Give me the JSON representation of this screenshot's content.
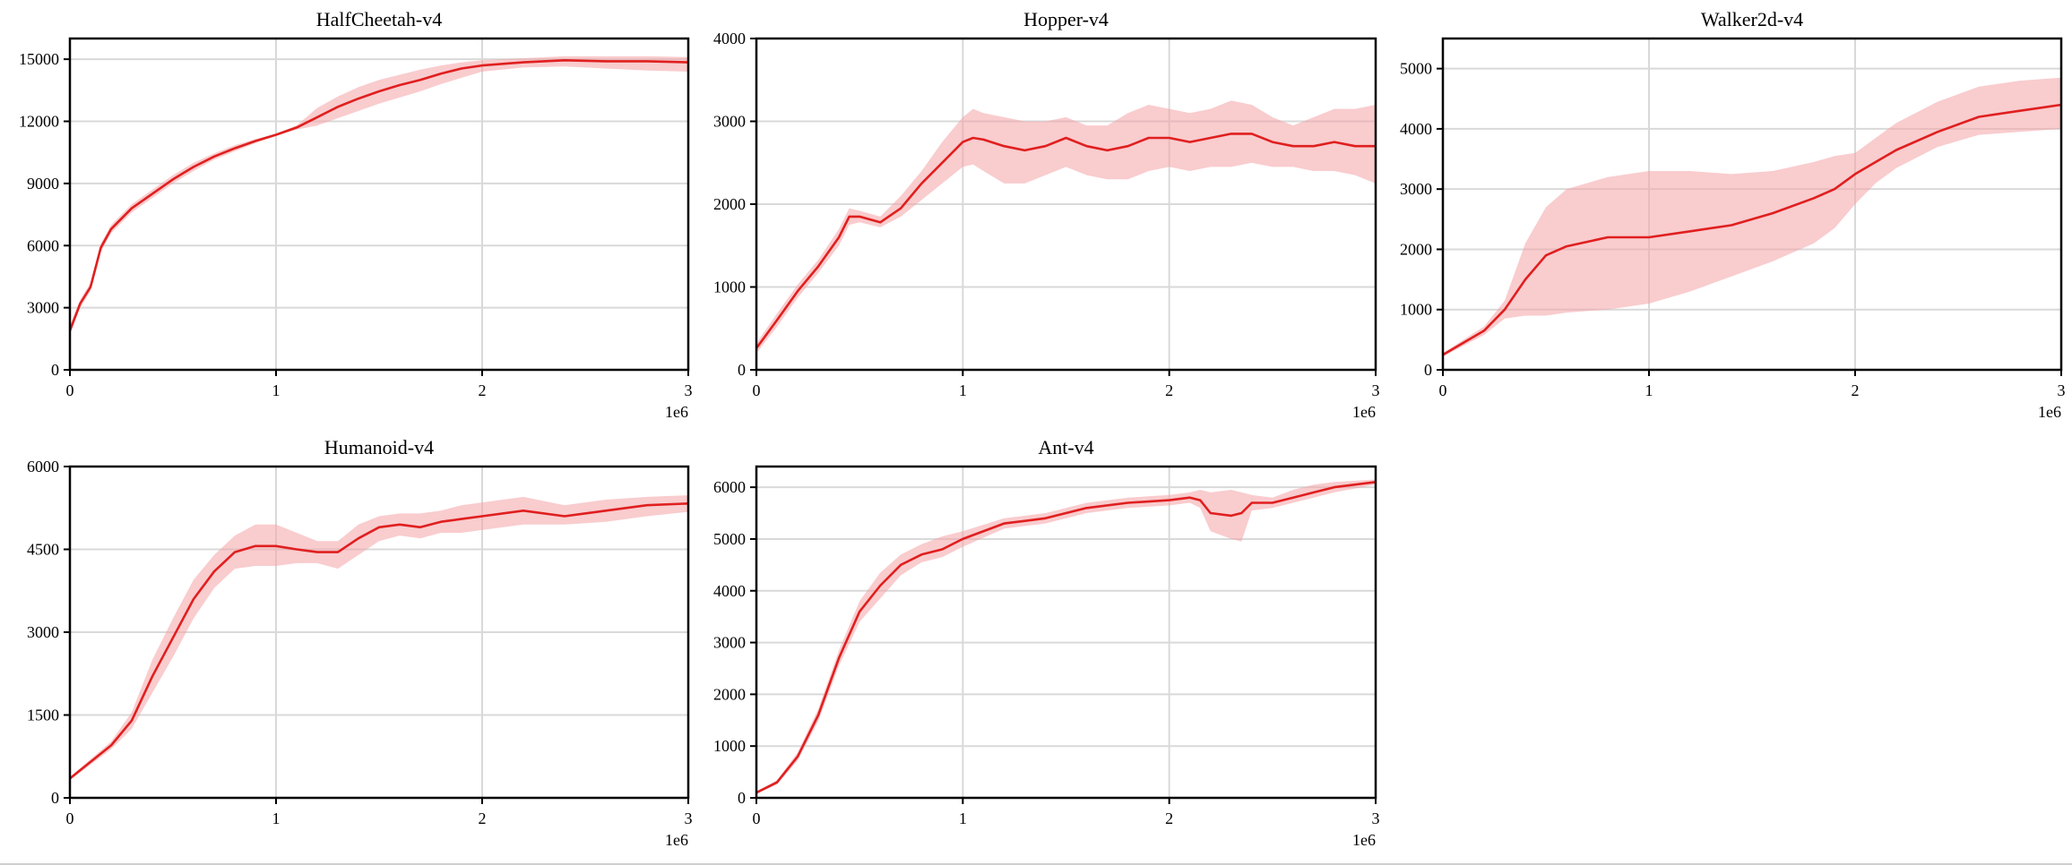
{
  "colors": {
    "line": "#e01f1f",
    "band": "#f4a3a6",
    "grid": "#d9d9d9",
    "axis": "#000000"
  },
  "chart_data": [
    {
      "type": "line",
      "title": "HalfCheetah-v4",
      "x_multiplier_label": "1e6",
      "xlim": [
        0,
        3
      ],
      "ylim": [
        0,
        16000
      ],
      "xticks": [
        0,
        1,
        2,
        3
      ],
      "yticks": [
        0,
        3000,
        6000,
        9000,
        12000,
        15000
      ],
      "grid": true,
      "series": [
        {
          "x": [
            0,
            0.05,
            0.1,
            0.15,
            0.2,
            0.3,
            0.4,
            0.5,
            0.6,
            0.7,
            0.8,
            0.9,
            1.0,
            1.1,
            1.2,
            1.3,
            1.4,
            1.5,
            1.6,
            1.7,
            1.8,
            1.9,
            2.0,
            2.2,
            2.4,
            2.6,
            2.8,
            3.0
          ],
          "y": [
            1900,
            3200,
            4000,
            5900,
            6800,
            7800,
            8500,
            9200,
            9800,
            10300,
            10700,
            11050,
            11350,
            11700,
            12200,
            12700,
            13100,
            13450,
            13750,
            14000,
            14300,
            14550,
            14700,
            14850,
            14950,
            14900,
            14900,
            14850
          ],
          "lower": [
            1700,
            3000,
            3800,
            5700,
            6600,
            7600,
            8300,
            9000,
            9600,
            10150,
            10550,
            10950,
            11300,
            11600,
            11800,
            12150,
            12500,
            12850,
            13150,
            13450,
            13800,
            14100,
            14400,
            14600,
            14650,
            14550,
            14450,
            14400
          ],
          "upper": [
            2100,
            3400,
            4200,
            6100,
            7000,
            8000,
            8700,
            9400,
            10000,
            10450,
            10850,
            11150,
            11400,
            11800,
            12650,
            13200,
            13650,
            14000,
            14250,
            14500,
            14700,
            14850,
            14950,
            15050,
            15150,
            15150,
            15150,
            15100
          ]
        }
      ]
    },
    {
      "type": "line",
      "title": "Hopper-v4",
      "x_multiplier_label": "1e6",
      "xlim": [
        0,
        3
      ],
      "ylim": [
        0,
        4000
      ],
      "xticks": [
        0,
        1,
        2,
        3
      ],
      "yticks": [
        0,
        1000,
        2000,
        3000,
        4000
      ],
      "grid": true,
      "series": [
        {
          "x": [
            0,
            0.1,
            0.2,
            0.3,
            0.4,
            0.45,
            0.5,
            0.6,
            0.7,
            0.8,
            0.9,
            1.0,
            1.05,
            1.1,
            1.2,
            1.3,
            1.4,
            1.5,
            1.6,
            1.7,
            1.8,
            1.9,
            2.0,
            2.1,
            2.2,
            2.3,
            2.4,
            2.5,
            2.6,
            2.7,
            2.8,
            2.9,
            3.0
          ],
          "y": [
            260,
            600,
            950,
            1250,
            1600,
            1850,
            1850,
            1780,
            1950,
            2250,
            2500,
            2750,
            2800,
            2780,
            2700,
            2650,
            2700,
            2800,
            2700,
            2650,
            2700,
            2800,
            2800,
            2750,
            2800,
            2850,
            2850,
            2750,
            2700,
            2700,
            2750,
            2700,
            2700
          ],
          "lower": [
            200,
            520,
            870,
            1170,
            1500,
            1750,
            1780,
            1720,
            1850,
            2050,
            2250,
            2450,
            2480,
            2400,
            2250,
            2250,
            2350,
            2450,
            2350,
            2300,
            2300,
            2400,
            2450,
            2400,
            2450,
            2450,
            2500,
            2450,
            2450,
            2400,
            2400,
            2350,
            2250
          ],
          "upper": [
            320,
            680,
            1030,
            1330,
            1700,
            1950,
            1920,
            1850,
            2100,
            2400,
            2750,
            3050,
            3150,
            3100,
            3050,
            3000,
            3000,
            3050,
            2950,
            2950,
            3100,
            3200,
            3150,
            3100,
            3150,
            3250,
            3200,
            3050,
            2950,
            3050,
            3150,
            3150,
            3200
          ]
        }
      ]
    },
    {
      "type": "line",
      "title": "Walker2d-v4",
      "x_multiplier_label": "1e6",
      "xlim": [
        0,
        3
      ],
      "ylim": [
        0,
        5500
      ],
      "xticks": [
        0,
        1,
        2,
        3
      ],
      "yticks": [
        0,
        1000,
        2000,
        3000,
        4000,
        5000
      ],
      "grid": true,
      "series": [
        {
          "x": [
            0,
            0.1,
            0.2,
            0.3,
            0.4,
            0.5,
            0.6,
            0.8,
            1.0,
            1.2,
            1.4,
            1.6,
            1.8,
            1.9,
            2.0,
            2.1,
            2.2,
            2.4,
            2.6,
            2.8,
            3.0
          ],
          "y": [
            250,
            450,
            650,
            1000,
            1500,
            1900,
            2050,
            2200,
            2200,
            2300,
            2400,
            2600,
            2850,
            3000,
            3250,
            3450,
            3650,
            3950,
            4200,
            4300,
            4400
          ],
          "lower": [
            220,
            400,
            580,
            850,
            900,
            900,
            950,
            1000,
            1100,
            1300,
            1550,
            1800,
            2100,
            2350,
            2750,
            3100,
            3350,
            3700,
            3900,
            3950,
            4000
          ],
          "upper": [
            280,
            500,
            720,
            1150,
            2100,
            2700,
            3000,
            3200,
            3300,
            3300,
            3250,
            3300,
            3450,
            3550,
            3600,
            3850,
            4100,
            4450,
            4700,
            4800,
            4850
          ]
        }
      ]
    },
    {
      "type": "line",
      "title": "Humanoid-v4",
      "x_multiplier_label": "1e6",
      "xlim": [
        0,
        3
      ],
      "ylim": [
        0,
        6000
      ],
      "xticks": [
        0,
        1,
        2,
        3
      ],
      "yticks": [
        0,
        1500,
        3000,
        4500,
        6000
      ],
      "grid": true,
      "series": [
        {
          "x": [
            0,
            0.1,
            0.2,
            0.3,
            0.4,
            0.5,
            0.6,
            0.7,
            0.8,
            0.9,
            1.0,
            1.1,
            1.2,
            1.3,
            1.4,
            1.5,
            1.6,
            1.7,
            1.8,
            1.9,
            2.0,
            2.2,
            2.4,
            2.6,
            2.8,
            3.0
          ],
          "y": [
            350,
            650,
            950,
            1400,
            2200,
            2900,
            3600,
            4100,
            4450,
            4560,
            4560,
            4500,
            4450,
            4450,
            4700,
            4900,
            4950,
            4900,
            5000,
            5050,
            5100,
            5200,
            5100,
            5200,
            5300,
            5330
          ],
          "lower": [
            320,
            600,
            880,
            1250,
            1900,
            2550,
            3250,
            3800,
            4150,
            4200,
            4200,
            4250,
            4250,
            4150,
            4400,
            4650,
            4750,
            4700,
            4800,
            4800,
            4850,
            4950,
            4950,
            5000,
            5100,
            5180
          ],
          "upper": [
            380,
            700,
            1020,
            1550,
            2500,
            3250,
            3950,
            4400,
            4750,
            4950,
            4950,
            4800,
            4650,
            4650,
            4950,
            5100,
            5150,
            5150,
            5200,
            5300,
            5350,
            5450,
            5300,
            5400,
            5450,
            5480
          ]
        }
      ]
    },
    {
      "type": "line",
      "title": "Ant-v4",
      "x_multiplier_label": "1e6",
      "xlim": [
        0,
        3
      ],
      "ylim": [
        0,
        6400
      ],
      "xticks": [
        0,
        1,
        2,
        3
      ],
      "yticks": [
        0,
        1000,
        2000,
        3000,
        4000,
        5000,
        6000
      ],
      "grid": true,
      "series": [
        {
          "x": [
            0,
            0.1,
            0.2,
            0.3,
            0.4,
            0.5,
            0.6,
            0.7,
            0.8,
            0.9,
            1.0,
            1.2,
            1.4,
            1.6,
            1.8,
            2.0,
            2.1,
            2.15,
            2.2,
            2.3,
            2.35,
            2.4,
            2.5,
            2.6,
            2.7,
            2.8,
            3.0
          ],
          "y": [
            100,
            300,
            800,
            1600,
            2700,
            3600,
            4100,
            4500,
            4700,
            4800,
            5000,
            5300,
            5400,
            5600,
            5700,
            5750,
            5800,
            5750,
            5500,
            5450,
            5500,
            5700,
            5700,
            5800,
            5900,
            6000,
            6100
          ],
          "lower": [
            80,
            260,
            720,
            1480,
            2550,
            3400,
            3850,
            4300,
            4550,
            4650,
            4850,
            5200,
            5300,
            5500,
            5600,
            5650,
            5700,
            5600,
            5150,
            5000,
            4950,
            5550,
            5600,
            5700,
            5800,
            5900,
            6050
          ],
          "upper": [
            120,
            340,
            880,
            1720,
            2850,
            3800,
            4350,
            4700,
            4900,
            5050,
            5150,
            5400,
            5500,
            5700,
            5800,
            5850,
            5900,
            5950,
            5900,
            5950,
            5900,
            5850,
            5800,
            5950,
            6050,
            6100,
            6150
          ]
        }
      ]
    }
  ]
}
